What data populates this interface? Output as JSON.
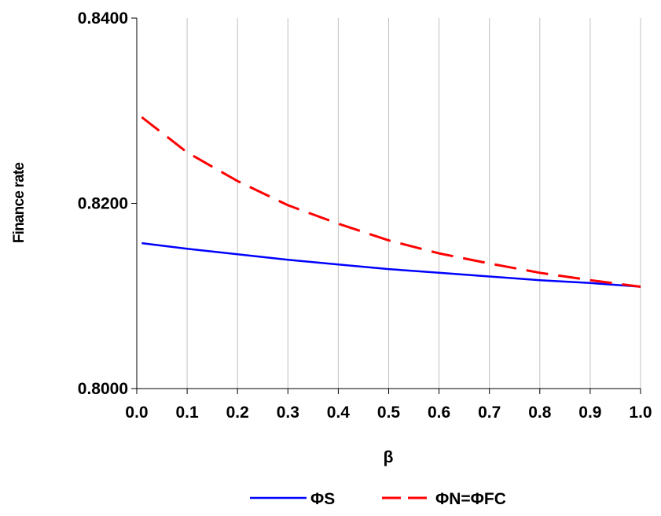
{
  "chart_data": {
    "type": "line",
    "title": "",
    "xlabel": "β",
    "ylabel": "Finance rate",
    "xlim": [
      0.0,
      1.0
    ],
    "ylim": [
      0.8,
      0.84
    ],
    "x_ticks": [
      "0.0",
      "0.1",
      "0.2",
      "0.3",
      "0.4",
      "0.5",
      "0.6",
      "0.7",
      "0.8",
      "0.9",
      "1.0"
    ],
    "y_ticks": [
      "0.8000",
      "0.8200",
      "0.8400"
    ],
    "grid": "vertical",
    "legend_position": "bottom",
    "x": [
      0.01,
      0.1,
      0.2,
      0.3,
      0.4,
      0.5,
      0.6,
      0.7,
      0.8,
      0.9,
      1.0
    ],
    "series": [
      {
        "name": "ΦS",
        "style": "solid",
        "color": "#0000ff",
        "values": [
          0.8157,
          0.8151,
          0.8145,
          0.8139,
          0.8134,
          0.8129,
          0.8125,
          0.8121,
          0.8117,
          0.8114,
          0.811
        ]
      },
      {
        "name": "ΦN=ΦFC",
        "style": "dashed",
        "color": "#ff0000",
        "values": [
          0.8293,
          0.8255,
          0.8224,
          0.8198,
          0.8178,
          0.816,
          0.8146,
          0.8135,
          0.8125,
          0.8117,
          0.811
        ]
      }
    ]
  }
}
